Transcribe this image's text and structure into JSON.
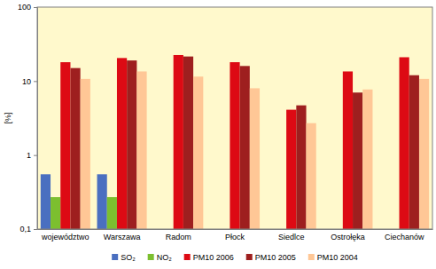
{
  "chart_data": {
    "type": "bar",
    "y_label": "[%]",
    "categories": [
      "województwo",
      "Warszawa",
      "Radom",
      "Płock",
      "Siedlce",
      "Ostrołęka",
      "Ciechanów"
    ],
    "series": [
      {
        "name": "SO₂",
        "color": "#4a6fc0",
        "values": [
          0.55,
          0.55,
          null,
          null,
          null,
          null,
          null
        ]
      },
      {
        "name": "NO₂",
        "color": "#7cbf2f",
        "values": [
          0.27,
          0.27,
          null,
          null,
          null,
          null,
          null
        ]
      },
      {
        "name": "PM10 2006",
        "color": "#dd0a14",
        "values": [
          18,
          20.5,
          22.5,
          18,
          4.1,
          13.5,
          21
        ]
      },
      {
        "name": "PM10 2005",
        "color": "#9e1f1f",
        "values": [
          15,
          19,
          21.5,
          16,
          4.7,
          7,
          12
        ]
      },
      {
        "name": "PM10 2004",
        "color": "#ffc796",
        "values": [
          10.7,
          13.5,
          11.5,
          8,
          2.7,
          7.7,
          10.7
        ]
      }
    ],
    "ylim": [
      0.1,
      100
    ],
    "yticks": [
      {
        "value": 0.1,
        "label": "0,1"
      },
      1,
      10,
      100
    ],
    "log": "y",
    "grid": false,
    "legend": "bottom"
  }
}
